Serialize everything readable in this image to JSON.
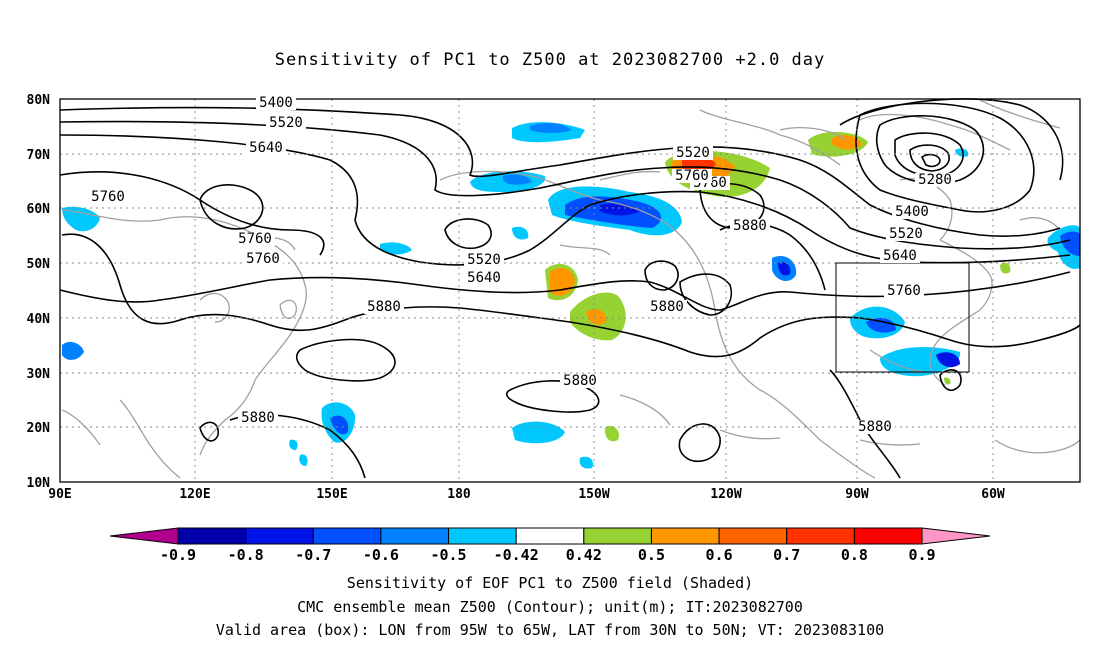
{
  "title": "Sensitivity of PC1 to Z500 at 2023082700 +2.0 day",
  "map": {
    "lat_labels": [
      "80N",
      "70N",
      "60N",
      "50N",
      "40N",
      "30N",
      "20N",
      "10N"
    ],
    "lon_labels": [
      "90E",
      "120E",
      "150E",
      "180",
      "150W",
      "120W",
      "90W",
      "60W"
    ],
    "contour_labels": [
      "5400",
      "5520",
      "5640",
      "5760",
      "5760",
      "5760",
      "5520",
      "5640",
      "5880",
      "5880",
      "5880",
      "5520",
      "5760",
      "5880",
      "5280",
      "5400",
      "5520",
      "5640",
      "5760",
      "5880",
      "5880",
      "5760"
    ],
    "box": {
      "lon_w": "95W",
      "lon_e": "65W",
      "lat_s": "30N",
      "lat_n": "50N"
    }
  },
  "colorbar": {
    "labels": [
      "-0.9",
      "-0.8",
      "-0.7",
      "-0.6",
      "-0.5",
      "-0.42",
      "0.42",
      "0.5",
      "0.6",
      "0.7",
      "0.8",
      "0.9"
    ],
    "colors": [
      "#b0008f",
      "#0000a8",
      "#0014e6",
      "#0050ff",
      "#0082ff",
      "#00c8ff",
      "#ffffff",
      "#96d232",
      "#ff9600",
      "#ff6400",
      "#ff3200",
      "#ff0000",
      "#ff96c8"
    ]
  },
  "captions": {
    "line1": "Sensitivity of EOF PC1 to Z500 field (Shaded)",
    "line2": "CMC ensemble mean Z500 (Contour); unit(m); IT:2023082700",
    "line3": "Valid area (box): LON from 95W to 65W, LAT from 30N to 50N; VT: 2023083100"
  }
}
